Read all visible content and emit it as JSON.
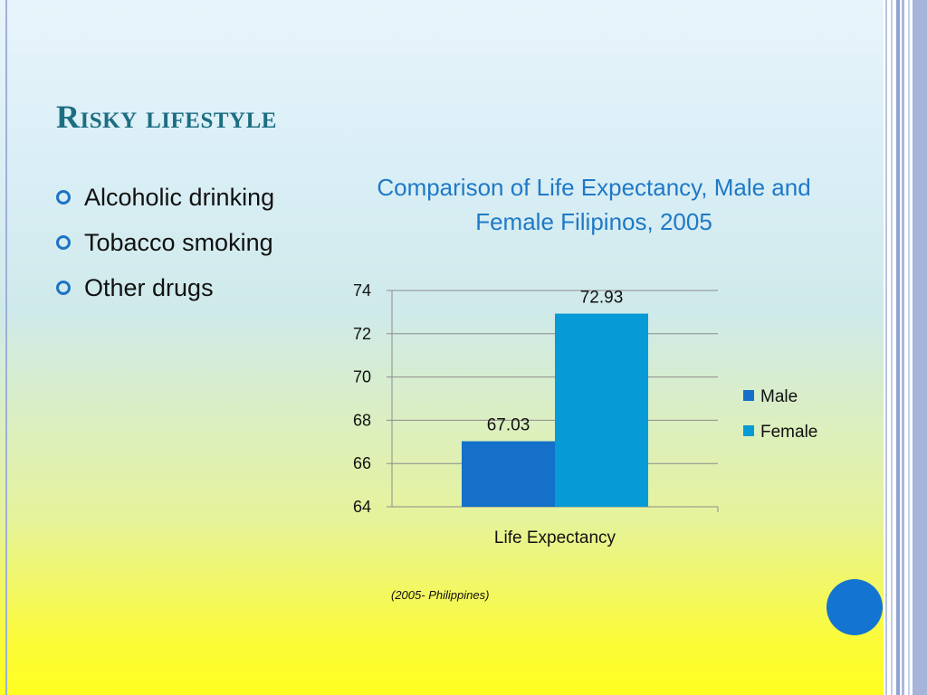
{
  "slide": {
    "title": "Risky lifestyle",
    "bullets": [
      "Alcoholic drinking",
      "Tobacco smoking",
      "Other drugs"
    ],
    "source_note": "(2005- Philippines)"
  },
  "colors": {
    "title": "#1c6e82",
    "chart_title": "#1f79c7",
    "bullet": "#1e73c4",
    "male": "#1470c8",
    "female": "#069ad6",
    "decor_circle": "#1474d1"
  },
  "chart_data": {
    "type": "bar",
    "title": "Comparison of Life Expectancy, Male and Female Filipinos, 2005",
    "categories": [
      "Life Expectancy"
    ],
    "series": [
      {
        "name": "Male",
        "values": [
          67.03
        ],
        "color": "#1470c8"
      },
      {
        "name": "Female",
        "values": [
          72.93
        ],
        "color": "#069ad6"
      }
    ],
    "data_labels": [
      "67.03",
      "72.93"
    ],
    "ylim": [
      64,
      74
    ],
    "yticks": [
      64,
      66,
      68,
      70,
      72,
      74
    ],
    "grid": true,
    "legend": "right"
  }
}
